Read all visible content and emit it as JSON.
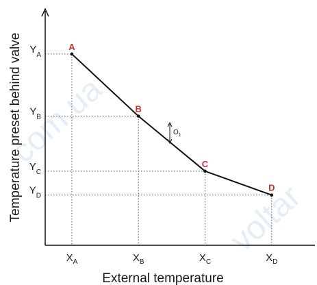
{
  "chart_data": {
    "type": "line",
    "xlabel": "External temperature",
    "ylabel": "Temperature preset behind valve",
    "x_ticks": [
      {
        "main": "X",
        "sub": "A",
        "pos": 1
      },
      {
        "main": "X",
        "sub": "B",
        "pos": 2
      },
      {
        "main": "X",
        "sub": "C",
        "pos": 3
      },
      {
        "main": "X",
        "sub": "D",
        "pos": 4
      }
    ],
    "y_ticks": [
      {
        "main": "Y",
        "sub": "A",
        "value": 4.0
      },
      {
        "main": "Y",
        "sub": "B",
        "value": 2.7
      },
      {
        "main": "Y",
        "sub": "C",
        "value": 1.55
      },
      {
        "main": "Y",
        "sub": "D",
        "value": 1.05
      }
    ],
    "points": [
      {
        "label": "A",
        "x": 1,
        "y": 4.0
      },
      {
        "label": "B",
        "x": 2,
        "y": 2.7
      },
      {
        "label": "C",
        "x": 3,
        "y": 1.55
      },
      {
        "label": "D",
        "x": 4,
        "y": 1.05
      }
    ],
    "annotation": {
      "main": "O",
      "sub": "1"
    },
    "xlim": [
      0.6,
      4.65
    ],
    "ylim": [
      0,
      4.9
    ],
    "grid": false,
    "guide_lines": "dotted",
    "point_label_color": "#c8302e",
    "line_color": "#111111",
    "watermark_color": "#3d7fc7"
  },
  "watermarks": [
    "com.ua",
    "voltar"
  ]
}
